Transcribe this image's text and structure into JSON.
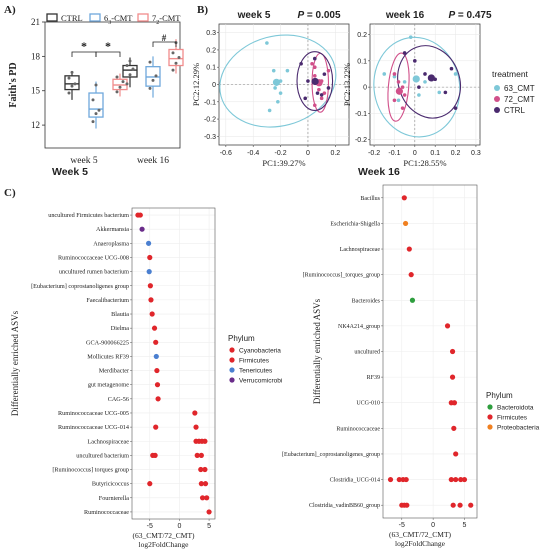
{
  "panelA": {
    "label": "A)",
    "legend": [
      {
        "pre": "CTRL",
        "sub": "",
        "post": "",
        "color": "#333333"
      },
      {
        "pre": "6",
        "sub": "3",
        "post": "-CMT",
        "color": "#6fa8dc"
      },
      {
        "pre": "7",
        "sub": "2",
        "post": "-CMT",
        "color": "#f08c8c"
      }
    ],
    "ylabel": "Faith's PD",
    "yticks": [
      "21",
      "18",
      "15",
      "12"
    ],
    "xticks": [
      "week 5",
      "week 16"
    ],
    "sig": [
      "*",
      "*",
      "#"
    ]
  },
  "panelB": {
    "label": "B)",
    "plots": [
      {
        "title": "week 5",
        "p": "P = 0.005",
        "ylabel": "PC2:12.29%",
        "xlabel": "PC1:39.27%",
        "yticks": [
          "0.3",
          "0.2",
          "0.1",
          "0",
          "-0.1",
          "-0.2",
          "-0.3"
        ],
        "xticks": [
          "-0.6",
          "-0.4",
          "-0.2",
          "0",
          "0.2"
        ]
      },
      {
        "title": "week 16",
        "p": "P = 0.475",
        "ylabel": "PC2:13.22%",
        "xlabel": "PC1:28.55%",
        "yticks": [
          "0.2",
          "0.1",
          "0",
          "-0.1",
          "-0.2"
        ],
        "xticks": [
          "-0.2",
          "-0.1",
          "0",
          "0.1",
          "0.2",
          "0.3"
        ]
      }
    ],
    "legend_title": "treatment",
    "legend": [
      {
        "label": "63_CMT",
        "color": "#7ec8d8"
      },
      {
        "label": "72_CMT",
        "color": "#d1508a"
      },
      {
        "label": "CTRL",
        "color": "#4a2a6e"
      }
    ]
  },
  "panelC": {
    "label": "C)",
    "ylabel": "Differentially enriched ASVs",
    "xlabel1": "(63_CMT/72_CMT)",
    "xlabel2": "log2FoldChange",
    "colors": {
      "Bacteroidota": "#2e9e3e",
      "Firmicutes": "#e0262b",
      "Proteobacteria": "#f08020",
      "Cyanobacteria": "#e0262b",
      "Tenericutes": "#4a7fd0",
      "Verrucomicrobia": "#6a2c8a"
    }
  },
  "chart_data": [
    {
      "type": "box",
      "title": "",
      "ylabel": "Faith's PD",
      "categories": [
        "week 5",
        "week 16"
      ],
      "ylim": [
        10,
        21
      ],
      "series": [
        {
          "name": "CTRL",
          "medians": [
            15.6,
            16.8
          ]
        },
        {
          "name": "63-CMT",
          "medians": [
            13.4,
            16.2
          ]
        },
        {
          "name": "72-CMT",
          "medians": [
            15.5,
            17.8
          ]
        }
      ]
    },
    {
      "type": "scatter",
      "title": "week 5",
      "xlabel": "PC1:39.27%",
      "ylabel": "PC2:12.29%",
      "xlim": [
        -0.65,
        0.3
      ],
      "ylim": [
        -0.35,
        0.35
      ],
      "series": [
        {
          "name": "63_CMT",
          "points": [
            [
              -0.3,
              0.24
            ],
            [
              -0.25,
              0.08
            ],
            [
              -0.2,
              0.02
            ],
            [
              -0.24,
              -0.02
            ],
            [
              -0.22,
              -0.1
            ],
            [
              -0.28,
              -0.15
            ],
            [
              -0.15,
              0.08
            ],
            [
              -0.2,
              -0.05
            ]
          ]
        },
        {
          "name": "72_CMT",
          "points": [
            [
              0.03,
              0.12
            ],
            [
              0.05,
              0.05
            ],
            [
              0.1,
              0.02
            ],
            [
              0.08,
              -0.03
            ],
            [
              0.12,
              -0.05
            ],
            [
              0.05,
              -0.12
            ],
            [
              0.1,
              -0.08
            ],
            [
              0.15,
              0.08
            ],
            [
              0.05,
              0.1
            ]
          ]
        },
        {
          "name": "CTRL",
          "points": [
            [
              -0.05,
              0.12
            ],
            [
              0.0,
              0.02
            ],
            [
              -0.02,
              -0.08
            ],
            [
              0.07,
              -0.05
            ],
            [
              0.12,
              0.06
            ],
            [
              0.15,
              -0.02
            ],
            [
              0.1,
              -0.06
            ],
            [
              0.05,
              0.15
            ]
          ]
        }
      ]
    },
    {
      "type": "scatter",
      "title": "week 16",
      "xlabel": "PC1:28.55%",
      "ylabel": "PC2:13.22%",
      "xlim": [
        -0.22,
        0.32
      ],
      "ylim": [
        -0.22,
        0.24
      ],
      "series": [
        {
          "name": "63_CMT",
          "points": [
            [
              -0.02,
              0.19
            ],
            [
              -0.15,
              0.05
            ],
            [
              -0.1,
              0.04
            ],
            [
              -0.05,
              0.02
            ],
            [
              0.05,
              0.02
            ],
            [
              0.12,
              -0.02
            ],
            [
              -0.08,
              -0.05
            ],
            [
              0.2,
              0.05
            ],
            [
              0.08,
              0.04
            ],
            [
              0.02,
              -0.03
            ]
          ]
        },
        {
          "name": "72_CMT",
          "points": [
            [
              -0.1,
              0.05
            ],
            [
              -0.08,
              0.02
            ],
            [
              -0.06,
              0.0
            ],
            [
              -0.05,
              -0.03
            ],
            [
              -0.1,
              -0.05
            ],
            [
              -0.06,
              -0.08
            ],
            [
              -0.08,
              -0.02
            ]
          ]
        },
        {
          "name": "CTRL",
          "points": [
            [
              -0.05,
              0.13
            ],
            [
              0.0,
              0.1
            ],
            [
              0.05,
              0.05
            ],
            [
              0.02,
              0.0
            ],
            [
              0.1,
              0.03
            ],
            [
              0.18,
              0.07
            ],
            [
              0.15,
              -0.02
            ],
            [
              0.2,
              -0.08
            ]
          ]
        }
      ]
    },
    {
      "type": "scatter",
      "title": "Week 5",
      "xlabel": "log2FoldChange",
      "ylabel": "Differentially enriched ASVs",
      "xlim": [
        -8,
        6
      ],
      "xticks": [
        "-5",
        "0",
        "5"
      ],
      "legend_title": "Phylum",
      "legend": [
        "Cyanobacteria",
        "Firmicutes",
        "Tenericutes",
        "Verrucomicrobi"
      ],
      "categories": [
        "uncultured Firmicutes bacterium",
        "Akkermansia",
        "Anaeroplasma",
        "Ruminococcaceae UCG-008",
        "uncultured rumen bacterium",
        "[Eubacterium] coprostanoligenes group",
        "Faecalibacterium",
        "Blautia",
        "Dielma",
        "GCA-900066225",
        "Mollicutes RF39",
        "Merdibacter",
        "gut metagenome",
        "CAG-56",
        "Ruminococcaceae UCG-005",
        "Ruminococcaceae UCG-014",
        "Lachnospiraceae",
        "uncultured bacterium",
        "[Ruminococcus] torques group",
        "Butyricicoccus",
        "Fournierella",
        "Ruminococcaceae"
      ],
      "points": [
        {
          "asv": "uncultured Firmicutes bacterium",
          "phylum": "Firmicutes",
          "values": [
            -7,
            -6.6
          ]
        },
        {
          "asv": "Akkermansia",
          "phylum": "Verrucomicrobia",
          "values": [
            -6.3
          ]
        },
        {
          "asv": "Anaeroplasma",
          "phylum": "Tenericutes",
          "values": [
            -5.2
          ]
        },
        {
          "asv": "Ruminococcaceae UCG-008",
          "phylum": "Firmicutes",
          "values": [
            -5.0
          ]
        },
        {
          "asv": "uncultured rumen bacterium",
          "phylum": "Tenericutes",
          "values": [
            -5.1
          ]
        },
        {
          "asv": "[Eubacterium] coprostanoligenes group",
          "phylum": "Firmicutes",
          "values": [
            -4.9
          ]
        },
        {
          "asv": "Faecalibacterium",
          "phylum": "Firmicutes",
          "values": [
            -4.8
          ]
        },
        {
          "asv": "Blautia",
          "phylum": "Firmicutes",
          "values": [
            -4.6
          ]
        },
        {
          "asv": "Dielma",
          "phylum": "Firmicutes",
          "values": [
            -4.2
          ]
        },
        {
          "asv": "GCA-900066225",
          "phylum": "Firmicutes",
          "values": [
            -4.0
          ]
        },
        {
          "asv": "Mollicutes RF39",
          "phylum": "Tenericutes",
          "values": [
            -3.9
          ]
        },
        {
          "asv": "Merdibacter",
          "phylum": "Firmicutes",
          "values": [
            -3.8
          ]
        },
        {
          "asv": "gut metagenome",
          "phylum": "Cyanobacteria",
          "values": [
            -3.7
          ]
        },
        {
          "asv": "CAG-56",
          "phylum": "Cyanobacteria",
          "values": [
            -3.6
          ]
        },
        {
          "asv": "Ruminococcaceae UCG-005",
          "phylum": "Firmicutes",
          "values": [
            2.6
          ]
        },
        {
          "asv": "Ruminococcaceae UCG-014",
          "phylum": "Firmicutes",
          "values": [
            -4.0,
            2.8
          ]
        },
        {
          "asv": "Lachnospiraceae",
          "phylum": "Firmicutes",
          "values": [
            2.8,
            3.3,
            3.8,
            4.3
          ]
        },
        {
          "asv": "uncultured bacterium",
          "phylum": "Firmicutes",
          "values": [
            -4.5,
            -4.1,
            3.0,
            3.7
          ]
        },
        {
          "asv": "[Ruminococcus] torques group",
          "phylum": "Firmicutes",
          "values": [
            3.6,
            4.3
          ]
        },
        {
          "asv": "Butyricicoccus",
          "phylum": "Firmicutes",
          "values": [
            -5.0,
            3.7,
            4.4
          ]
        },
        {
          "asv": "Fournierella",
          "phylum": "Firmicutes",
          "values": [
            3.9,
            4.6
          ]
        },
        {
          "asv": "Ruminococcaceae",
          "phylum": "Firmicutes",
          "values": [
            5.0
          ]
        }
      ]
    },
    {
      "type": "scatter",
      "title": "Week 16",
      "xlabel": "log2FoldChange",
      "ylabel": "Differentially enriched ASVs",
      "xlim": [
        -8,
        7
      ],
      "xticks": [
        "-5",
        "0",
        "5"
      ],
      "legend_title": "Phylum",
      "legend": [
        "Bacteroidota",
        "Firmicutes",
        "Proteobacteria"
      ],
      "categories": [
        "Bacillus",
        "Escherichia-Shigella",
        "Lachnospiraceae",
        "[Ruminococcus]_torques_group",
        "Bacteroides",
        "NK4A214_group",
        "uncultured",
        "RF39",
        "UCG-010",
        "Ruminococcaceae",
        "[Eubacterium]_coprostanoligenes_group",
        "Clostridia_UCG-014",
        "Clostridia_vadinBB60_group"
      ],
      "points": [
        {
          "asv": "Bacillus",
          "phylum": "Firmicutes",
          "values": [
            -4.6
          ]
        },
        {
          "asv": "Escherichia-Shigella",
          "phylum": "Proteobacteria",
          "values": [
            -4.4
          ]
        },
        {
          "asv": "Lachnospiraceae",
          "phylum": "Firmicutes",
          "values": [
            -3.8
          ]
        },
        {
          "asv": "[Ruminococcus]_torques_group",
          "phylum": "Firmicutes",
          "values": [
            -3.5
          ]
        },
        {
          "asv": "Bacteroides",
          "phylum": "Bacteroidota",
          "values": [
            -3.3
          ]
        },
        {
          "asv": "NK4A214_group",
          "phylum": "Firmicutes",
          "values": [
            2.3
          ]
        },
        {
          "asv": "uncultured",
          "phylum": "Firmicutes",
          "values": [
            3.1
          ]
        },
        {
          "asv": "RF39",
          "phylum": "Firmicutes",
          "values": [
            3.1
          ]
        },
        {
          "asv": "UCG-010",
          "phylum": "Firmicutes",
          "values": [
            2.9,
            3.4
          ]
        },
        {
          "asv": "Ruminococcaceae",
          "phylum": "Firmicutes",
          "values": [
            3.3
          ]
        },
        {
          "asv": "[Eubacterium]_coprostanoligenes_group",
          "phylum": "Firmicutes",
          "values": [
            3.6
          ]
        },
        {
          "asv": "Clostridia_UCG-014",
          "phylum": "Firmicutes",
          "values": [
            -6.8,
            -5.4,
            -4.8,
            -4.3,
            2.9,
            3.6,
            4.4,
            5.0
          ]
        },
        {
          "asv": "Clostridia_vadinBB60_group",
          "phylum": "Firmicutes",
          "values": [
            -5.0,
            -4.6,
            -4.2,
            3.2,
            4.3,
            6.0
          ]
        }
      ]
    }
  ]
}
